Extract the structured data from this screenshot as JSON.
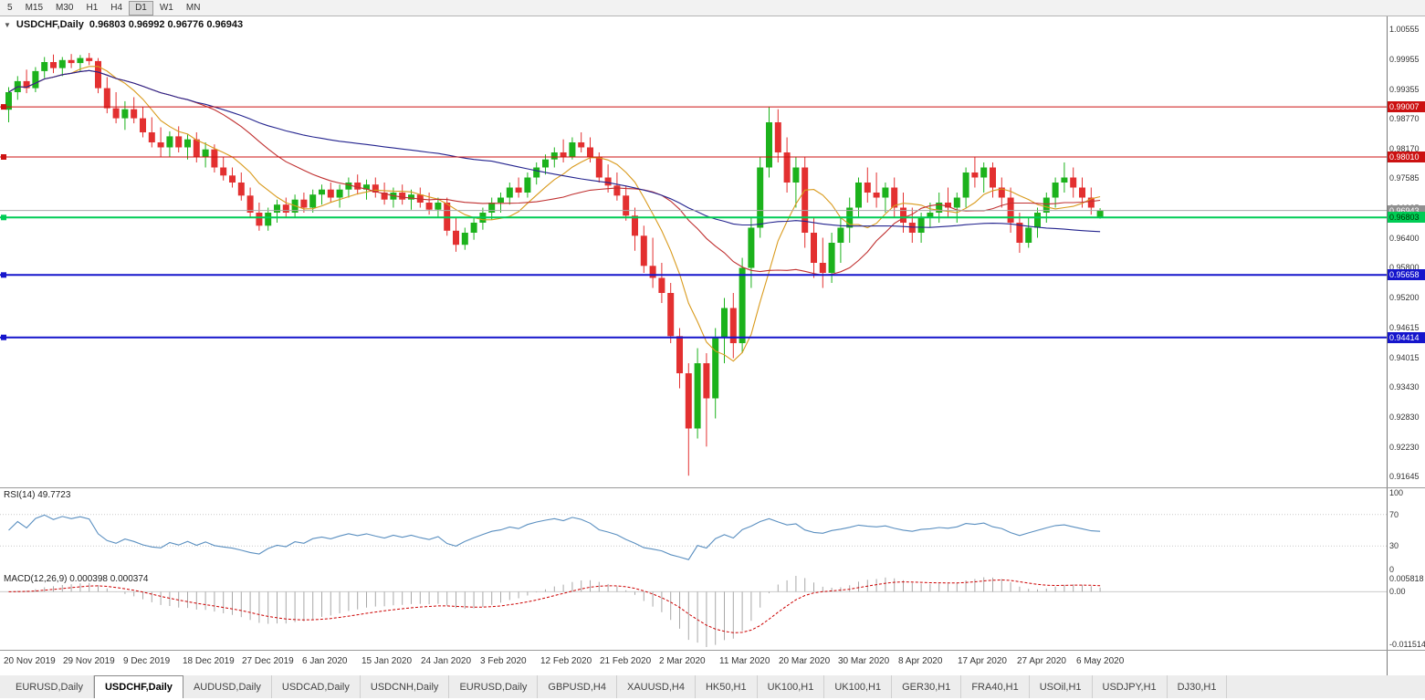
{
  "toolbar": {
    "periods": [
      "5",
      "M15",
      "M30",
      "H1",
      "H4",
      "D1",
      "W1",
      "MN"
    ],
    "active": "D1"
  },
  "chart_header": {
    "symbol": "USDCHF,Daily",
    "ohlc": "0.96803 0.96992 0.96776 0.96943",
    "dropdown_icon": "chevron-down"
  },
  "chart_data": {
    "type": "candlestick",
    "symbol": "USDCHF",
    "timeframe": "Daily",
    "colors": {
      "up": "#1cb21c",
      "down": "#e33030",
      "background": "#ffffff"
    },
    "price_axis": {
      "min": 0.91645,
      "max": 1.00555,
      "ticks": [
        "1.00555",
        "0.99955",
        "0.99355",
        "0.98770",
        "0.98170",
        "0.97585",
        "0.96985",
        "0.96400",
        "0.95800",
        "0.95200",
        "0.94615",
        "0.94015",
        "0.93430",
        "0.92830",
        "0.92230",
        "0.91645"
      ]
    },
    "x_ticks": [
      "20 Nov 2019",
      "29 Nov 2019",
      "9 Dec 2019",
      "18 Dec 2019",
      "27 Dec 2019",
      "6 Jan 2020",
      "15 Jan 2020",
      "24 Jan 2020",
      "3 Feb 2020",
      "12 Feb 2020",
      "21 Feb 2020",
      "2 Mar 2020",
      "11 Mar 2020",
      "20 Mar 2020",
      "30 Mar 2020",
      "8 Apr 2020",
      "17 Apr 2020",
      "27 Apr 2020",
      "6 May 2020"
    ],
    "hlines": [
      {
        "price": 0.99007,
        "label": "0.99007",
        "color": "#cc1111",
        "badge": "#cc1111",
        "text": "#ffffff",
        "width": 1,
        "handle": true
      },
      {
        "price": 0.9801,
        "label": "0.98010",
        "color": "#cc1111",
        "badge": "#cc1111",
        "text": "#ffffff",
        "width": 1,
        "handle": true
      },
      {
        "price": 0.96943,
        "label": "0.96943",
        "color": "#a8a8a8",
        "badge": "#909090",
        "text": "#ffffff",
        "width": 1,
        "handle": false
      },
      {
        "price": 0.96803,
        "label": "0.96803",
        "color": "#00cc55",
        "badge": "#00cc55",
        "text": "#003300",
        "width": 2,
        "handle": true
      },
      {
        "price": 0.95658,
        "label": "0.95658",
        "color": "#1515cc",
        "badge": "#1515cc",
        "text": "#ffffff",
        "width": 2,
        "handle": true
      },
      {
        "price": 0.94414,
        "label": "0.94414",
        "color": "#1515cc",
        "badge": "#1515cc",
        "text": "#ffffff",
        "width": 2,
        "handle": true
      }
    ],
    "moving_averages": [
      {
        "period": 8,
        "color": "#d99a1c"
      },
      {
        "period": 21,
        "color": "#c03030"
      },
      {
        "period": 55,
        "color": "#23238e"
      }
    ],
    "rsi": {
      "label": "RSI(14) 49.7723",
      "period": 14,
      "levels": [
        100,
        70,
        30,
        0
      ],
      "color": "#5a8fc0"
    },
    "macd": {
      "label": "MACD(12,26,9) 0.000398 0.000374",
      "axis": [
        "0.005818",
        "0.00",
        "-0.011514"
      ],
      "hist_color": "#a8a8a8",
      "signal_color": "#cc0000"
    },
    "candles": [
      [
        0.9895,
        0.994,
        0.987,
        0.993
      ],
      [
        0.993,
        0.9962,
        0.9915,
        0.9952
      ],
      [
        0.9952,
        0.9975,
        0.9928,
        0.9938
      ],
      [
        0.9938,
        0.998,
        0.993,
        0.9972
      ],
      [
        0.9972,
        1.0,
        0.9958,
        0.999
      ],
      [
        0.999,
        1.0005,
        0.9968,
        0.9978
      ],
      [
        0.9978,
        1.0,
        0.9962,
        0.9994
      ],
      [
        0.9994,
        1.0006,
        0.9978,
        0.9988
      ],
      [
        0.9988,
        1.0004,
        0.9972,
        0.9998
      ],
      [
        0.9998,
        1.0008,
        0.9984,
        0.9992
      ],
      [
        0.9992,
        0.9998,
        0.9928,
        0.9938
      ],
      [
        0.9938,
        0.996,
        0.9888,
        0.9898
      ],
      [
        0.9898,
        0.993,
        0.9868,
        0.9878
      ],
      [
        0.9878,
        0.9912,
        0.9855,
        0.9896
      ],
      [
        0.9896,
        0.992,
        0.9868,
        0.9878
      ],
      [
        0.9878,
        0.99,
        0.984,
        0.985
      ],
      [
        0.985,
        0.988,
        0.982,
        0.983
      ],
      [
        0.983,
        0.986,
        0.98,
        0.982
      ],
      [
        0.982,
        0.9852,
        0.98,
        0.9842
      ],
      [
        0.9842,
        0.9862,
        0.981,
        0.982
      ],
      [
        0.982,
        0.9846,
        0.9796,
        0.9836
      ],
      [
        0.9836,
        0.985,
        0.979,
        0.98
      ],
      [
        0.98,
        0.983,
        0.978,
        0.9816
      ],
      [
        0.9816,
        0.9826,
        0.977,
        0.978
      ],
      [
        0.978,
        0.98,
        0.9754,
        0.9764
      ],
      [
        0.9764,
        0.978,
        0.974,
        0.975
      ],
      [
        0.975,
        0.977,
        0.9714,
        0.9724
      ],
      [
        0.9724,
        0.974,
        0.968,
        0.969
      ],
      [
        0.969,
        0.971,
        0.9654,
        0.9664
      ],
      [
        0.9664,
        0.97,
        0.9654,
        0.969
      ],
      [
        0.969,
        0.9716,
        0.967,
        0.9706
      ],
      [
        0.9706,
        0.972,
        0.968,
        0.969
      ],
      [
        0.969,
        0.9726,
        0.968,
        0.9716
      ],
      [
        0.9716,
        0.973,
        0.969,
        0.97
      ],
      [
        0.97,
        0.9736,
        0.969,
        0.9726
      ],
      [
        0.9726,
        0.9746,
        0.9706,
        0.9736
      ],
      [
        0.9736,
        0.975,
        0.971,
        0.972
      ],
      [
        0.972,
        0.9746,
        0.97,
        0.9736
      ],
      [
        0.9736,
        0.976,
        0.972,
        0.975
      ],
      [
        0.975,
        0.9766,
        0.9726,
        0.9736
      ],
      [
        0.9736,
        0.9756,
        0.9716,
        0.9746
      ],
      [
        0.9746,
        0.976,
        0.972,
        0.973
      ],
      [
        0.973,
        0.975,
        0.9706,
        0.9716
      ],
      [
        0.9716,
        0.974,
        0.97,
        0.973
      ],
      [
        0.973,
        0.9746,
        0.9706,
        0.9716
      ],
      [
        0.9716,
        0.9736,
        0.9696,
        0.9726
      ],
      [
        0.9726,
        0.974,
        0.97,
        0.971
      ],
      [
        0.971,
        0.973,
        0.9686,
        0.9696
      ],
      [
        0.9696,
        0.972,
        0.968,
        0.971
      ],
      [
        0.971,
        0.972,
        0.9644,
        0.9654
      ],
      [
        0.9654,
        0.968,
        0.9612,
        0.9626
      ],
      [
        0.9626,
        0.966,
        0.9616,
        0.965
      ],
      [
        0.965,
        0.968,
        0.9636,
        0.967
      ],
      [
        0.967,
        0.97,
        0.9656,
        0.969
      ],
      [
        0.969,
        0.972,
        0.9676,
        0.971
      ],
      [
        0.971,
        0.973,
        0.969,
        0.972
      ],
      [
        0.972,
        0.975,
        0.9706,
        0.974
      ],
      [
        0.974,
        0.976,
        0.972,
        0.973
      ],
      [
        0.973,
        0.977,
        0.972,
        0.976
      ],
      [
        0.976,
        0.979,
        0.9746,
        0.978
      ],
      [
        0.978,
        0.9806,
        0.9766,
        0.9796
      ],
      [
        0.9796,
        0.982,
        0.978,
        0.981
      ],
      [
        0.981,
        0.9836,
        0.979,
        0.98
      ],
      [
        0.98,
        0.984,
        0.9796,
        0.983
      ],
      [
        0.983,
        0.985,
        0.981,
        0.982
      ],
      [
        0.982,
        0.984,
        0.979,
        0.98
      ],
      [
        0.98,
        0.981,
        0.975,
        0.976
      ],
      [
        0.976,
        0.9786,
        0.973,
        0.9744
      ],
      [
        0.9744,
        0.977,
        0.9714,
        0.9724
      ],
      [
        0.9724,
        0.9744,
        0.9674,
        0.9684
      ],
      [
        0.9684,
        0.97,
        0.9614,
        0.9644
      ],
      [
        0.9644,
        0.9664,
        0.957,
        0.9584
      ],
      [
        0.9584,
        0.964,
        0.954,
        0.956
      ],
      [
        0.956,
        0.959,
        0.951,
        0.953
      ],
      [
        0.953,
        0.955,
        0.943,
        0.9444
      ],
      [
        0.9444,
        0.946,
        0.934,
        0.937
      ],
      [
        0.937,
        0.939,
        0.9166,
        0.926
      ],
      [
        0.926,
        0.942,
        0.924,
        0.939
      ],
      [
        0.939,
        0.941,
        0.9224,
        0.932
      ],
      [
        0.932,
        0.946,
        0.928,
        0.944
      ],
      [
        0.944,
        0.952,
        0.939,
        0.95
      ],
      [
        0.95,
        0.953,
        0.94,
        0.943
      ],
      [
        0.943,
        0.96,
        0.941,
        0.958
      ],
      [
        0.958,
        0.968,
        0.954,
        0.966
      ],
      [
        0.966,
        0.98,
        0.964,
        0.978
      ],
      [
        0.978,
        0.99,
        0.976,
        0.987
      ],
      [
        0.987,
        0.9896,
        0.979,
        0.981
      ],
      [
        0.981,
        0.984,
        0.973,
        0.975
      ],
      [
        0.975,
        0.98,
        0.97,
        0.978
      ],
      [
        0.978,
        0.98,
        0.962,
        0.965
      ],
      [
        0.965,
        0.968,
        0.956,
        0.959
      ],
      [
        0.959,
        0.964,
        0.954,
        0.957
      ],
      [
        0.957,
        0.965,
        0.955,
        0.963
      ],
      [
        0.963,
        0.968,
        0.959,
        0.966
      ],
      [
        0.966,
        0.972,
        0.963,
        0.97
      ],
      [
        0.97,
        0.976,
        0.968,
        0.975
      ],
      [
        0.975,
        0.978,
        0.971,
        0.973
      ],
      [
        0.973,
        0.977,
        0.97,
        0.972
      ],
      [
        0.972,
        0.975,
        0.969,
        0.974
      ],
      [
        0.974,
        0.976,
        0.968,
        0.97
      ],
      [
        0.97,
        0.973,
        0.965,
        0.967
      ],
      [
        0.967,
        0.97,
        0.963,
        0.965
      ],
      [
        0.965,
        0.969,
        0.963,
        0.968
      ],
      [
        0.968,
        0.971,
        0.966,
        0.969
      ],
      [
        0.969,
        0.973,
        0.967,
        0.971
      ],
      [
        0.971,
        0.974,
        0.968,
        0.97
      ],
      [
        0.97,
        0.973,
        0.967,
        0.972
      ],
      [
        0.972,
        0.978,
        0.97,
        0.977
      ],
      [
        0.977,
        0.98,
        0.974,
        0.976
      ],
      [
        0.976,
        0.979,
        0.973,
        0.978
      ],
      [
        0.978,
        0.979,
        0.972,
        0.974
      ],
      [
        0.974,
        0.976,
        0.97,
        0.972
      ],
      [
        0.972,
        0.974,
        0.965,
        0.967
      ],
      [
        0.967,
        0.969,
        0.961,
        0.963
      ],
      [
        0.963,
        0.968,
        0.962,
        0.966
      ],
      [
        0.966,
        0.97,
        0.964,
        0.969
      ],
      [
        0.969,
        0.973,
        0.967,
        0.972
      ],
      [
        0.972,
        0.976,
        0.97,
        0.975
      ],
      [
        0.975,
        0.979,
        0.973,
        0.976
      ],
      [
        0.976,
        0.978,
        0.972,
        0.974
      ],
      [
        0.974,
        0.976,
        0.97,
        0.972
      ],
      [
        0.972,
        0.974,
        0.9686,
        0.97
      ],
      [
        0.968,
        0.9699,
        0.9678,
        0.9694
      ]
    ]
  },
  "tabs": {
    "active_index": 1,
    "items": [
      "EURUSD,Daily",
      "USDCHF,Daily",
      "AUDUSD,Daily",
      "USDCAD,Daily",
      "USDCNH,Daily",
      "EURUSD,Daily",
      "GBPUSD,H4",
      "XAUUSD,H4",
      "HK50,H1",
      "UK100,H1",
      "UK100,H1",
      "GER30,H1",
      "FRA40,H1",
      "USOil,H1",
      "USDJPY,H1",
      "DJ30,H1"
    ]
  }
}
